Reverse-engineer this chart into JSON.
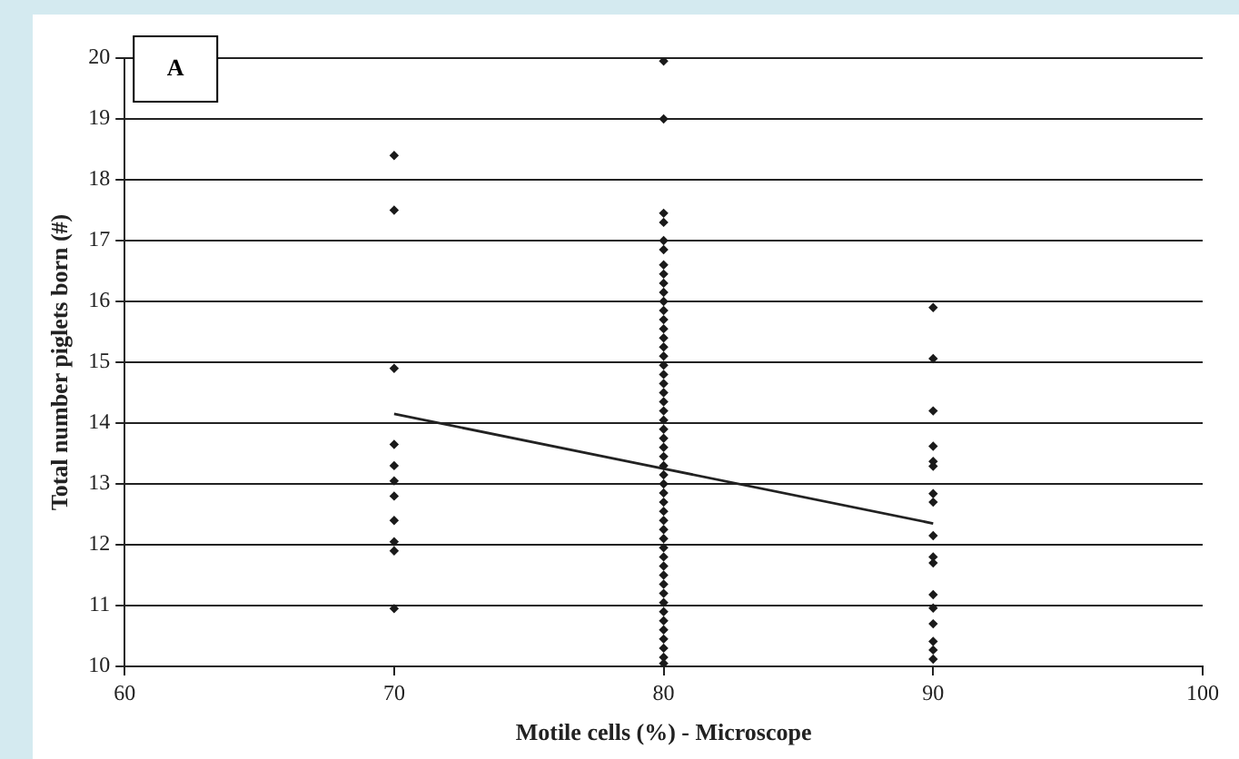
{
  "chart_data": {
    "type": "scatter",
    "xlabel": "Motile cells (%) - Microscope",
    "ylabel": "Total number piglets born (#)",
    "annotations": [
      "A"
    ],
    "xlim": [
      60,
      100
    ],
    "xticks": [
      60,
      70,
      80,
      90,
      100
    ],
    "ylim": [
      10,
      20
    ],
    "yticks": [
      10,
      11,
      12,
      13,
      14,
      15,
      16,
      17,
      18,
      19,
      20
    ],
    "grid": "y",
    "legend": false,
    "marker": "diamond",
    "series": [
      {
        "color": "#1a1a1a",
        "x": [
          70,
          70,
          70,
          70,
          70,
          70,
          70,
          70,
          70,
          70,
          70
        ],
        "values": [
          18.4,
          17.5,
          14.9,
          13.65,
          13.3,
          13.05,
          12.8,
          12.4,
          12.05,
          11.9,
          10.95
        ]
      },
      {
        "color": "#1a1a1a",
        "x": [
          80,
          80,
          80,
          80,
          80,
          80,
          80,
          80,
          80,
          80,
          80,
          80,
          80,
          80,
          80,
          80,
          80,
          80,
          80,
          80,
          80,
          80,
          80,
          80,
          80,
          80,
          80,
          80,
          80,
          80,
          80,
          80,
          80,
          80,
          80,
          80,
          80,
          80,
          80,
          80,
          80,
          80,
          80,
          80,
          80,
          80,
          80,
          80,
          80,
          80,
          80
        ],
        "values": [
          19.95,
          19.0,
          17.45,
          17.3,
          17.0,
          16.85,
          16.6,
          16.45,
          16.3,
          16.15,
          16.0,
          15.85,
          15.7,
          15.55,
          15.4,
          15.25,
          15.1,
          14.95,
          14.8,
          14.65,
          14.5,
          14.35,
          14.2,
          14.05,
          13.9,
          13.75,
          13.6,
          13.45,
          13.3,
          13.15,
          13.0,
          12.85,
          12.7,
          12.55,
          12.4,
          12.25,
          12.1,
          11.95,
          11.8,
          11.65,
          11.5,
          11.35,
          11.2,
          11.05,
          10.9,
          10.75,
          10.6,
          10.45,
          10.3,
          10.15,
          10.05
        ]
      },
      {
        "color": "#1a1a1a",
        "x": [
          90,
          90,
          90,
          90,
          90,
          90,
          90,
          90,
          90,
          90,
          90,
          90,
          90,
          90,
          90,
          90,
          90
        ],
        "values": [
          15.9,
          15.06,
          14.2,
          13.62,
          13.37,
          13.29,
          12.84,
          12.7,
          12.15,
          11.8,
          11.7,
          11.18,
          10.96,
          10.7,
          10.41,
          10.27,
          10.12
        ]
      },
      {
        "type": "line",
        "color": "#222222",
        "marker": "none",
        "line_style": "solid",
        "x": [
          70,
          90
        ],
        "values": [
          14.15,
          12.35
        ]
      }
    ]
  }
}
